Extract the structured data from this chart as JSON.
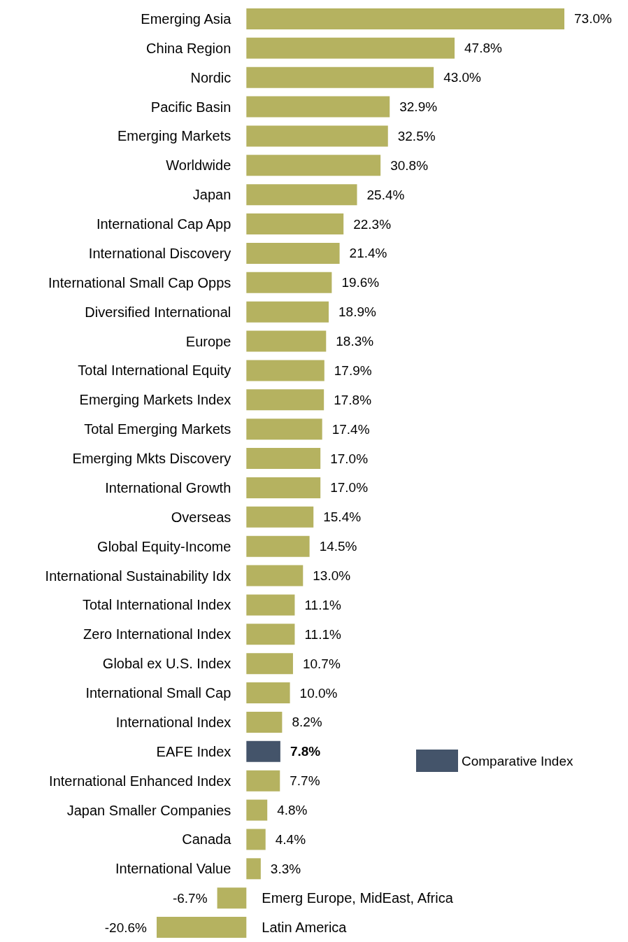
{
  "chart_data": {
    "type": "bar",
    "orientation": "horizontal",
    "stacked": true,
    "legend": "right",
    "categories": [
      "Emerging Asia",
      "China Region",
      "Nordic",
      "Pacific Basin",
      "Emerging Markets",
      "Worldwide",
      "Japan",
      "International Cap App",
      "International Discovery",
      "International Small Cap Opps",
      "Diversified International",
      "Europe",
      "Total International Equity",
      "Emerging Markets Index",
      "Total Emerging Markets",
      "Emerging Mkts Discovery",
      "International Growth",
      "Overseas",
      "Global Equity-Income",
      "International Sustainability Idx",
      "Total International Index",
      "Zero International Index",
      "Global ex U.S. Index",
      "International Small Cap",
      "International Index",
      "EAFE Index",
      "International Enhanced Index",
      "Japan Smaller Companies",
      "Canada",
      "International Value",
      "Emerg Europe, MidEast, Africa",
      "Latin America"
    ],
    "series": [
      {
        "color": "#b5b260",
        "values": [
          73.0,
          47.8,
          43.0,
          32.9,
          32.5,
          30.8,
          25.4,
          22.3,
          21.4,
          19.6,
          18.9,
          18.3,
          17.9,
          17.8,
          17.4,
          17.0,
          17.0,
          15.4,
          14.5,
          13.0,
          11.1,
          11.1,
          10.7,
          10.0,
          8.2,
          null,
          7.7,
          4.8,
          4.4,
          3.3,
          -6.7,
          -20.6
        ],
        "value_labels": [
          "73.0%",
          "47.8%",
          "43.0%",
          "32.9%",
          "32.5%",
          "30.8%",
          "25.4%",
          "22.3%",
          "21.4%",
          "19.6%",
          "18.9%",
          "18.3%",
          "17.9%",
          "17.8%",
          "17.4%",
          "17.0%",
          "17.0%",
          "15.4%",
          "14.5%",
          "13.0%",
          "11.1%",
          "11.1%",
          "10.7%",
          "10.0%",
          "8.2%",
          null,
          "7.7%",
          "4.8%",
          "4.4%",
          "3.3%",
          "-6.7%",
          "-20.6%"
        ]
      },
      {
        "name": "Comparative Index",
        "color": "#44546a",
        "values": [
          null,
          null,
          null,
          null,
          null,
          null,
          null,
          null,
          null,
          null,
          null,
          null,
          null,
          null,
          null,
          null,
          null,
          null,
          null,
          null,
          null,
          null,
          null,
          null,
          null,
          7.8,
          null,
          null,
          null,
          null,
          null,
          null
        ],
        "value_labels": [
          null,
          null,
          null,
          null,
          null,
          null,
          null,
          null,
          null,
          null,
          null,
          null,
          null,
          null,
          null,
          null,
          null,
          null,
          null,
          null,
          null,
          null,
          null,
          null,
          null,
          "7.8%",
          null,
          null,
          null,
          null,
          null,
          null
        ]
      }
    ]
  }
}
